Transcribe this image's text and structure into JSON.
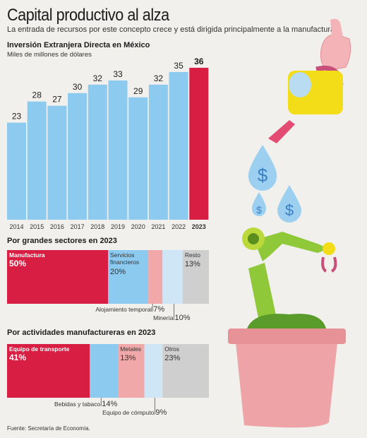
{
  "header": {
    "title": "Capital productivo al alza",
    "subtitle": "La entrada de recursos por este concepto crece y está dirigida principalmente a la manufactura."
  },
  "colors": {
    "red": "#d81f43",
    "blue": "#8ccaf0",
    "pink": "#f0a8a8",
    "lightblue": "#cfe6f6",
    "gray": "#cfcfcf"
  },
  "chart_data": [
    {
      "type": "bar",
      "title": "Inversión Extranjera Directa en México",
      "ylabel": "Miles de millones de dólares",
      "categories": [
        "2014",
        "2015",
        "2016",
        "2017",
        "2018",
        "2019",
        "2020",
        "2021",
        "2022",
        "2023"
      ],
      "values": [
        23,
        28,
        27,
        30,
        32,
        33,
        29,
        32,
        35,
        36
      ],
      "highlight": "2023",
      "ylim": [
        0,
        38
      ]
    },
    {
      "type": "bar",
      "title": "Por grandes sectores en 2023",
      "segments": [
        {
          "name": "Manufactura",
          "value": 50,
          "label": "50%",
          "color": "#d81f43"
        },
        {
          "name": "Servicios financieros",
          "value": 20,
          "label": "20%",
          "color": "#8ccaf0"
        },
        {
          "name": "Alojamiento temporal",
          "value": 7,
          "label": "7%",
          "color": "#f0a8a8"
        },
        {
          "name": "Minería",
          "value": 10,
          "label": "10%",
          "color": "#cfe6f6"
        },
        {
          "name": "Resto",
          "value": 13,
          "label": "13%",
          "color": "#cfcfcf"
        }
      ]
    },
    {
      "type": "bar",
      "title": "Por actividades manufactureras en 2023",
      "segments": [
        {
          "name": "Equipo de transporte",
          "value": 41,
          "label": "41%",
          "color": "#d81f43"
        },
        {
          "name": "Bebidas y tabaco",
          "value": 14,
          "label": "14%",
          "color": "#8ccaf0"
        },
        {
          "name": "Metales",
          "value": 13,
          "label": "13%",
          "color": "#f0a8a8"
        },
        {
          "name": "Equipo de cómputo",
          "value": 9,
          "label": "9%",
          "color": "#cfe6f6"
        },
        {
          "name": "Otros",
          "value": 23,
          "label": "23%",
          "color": "#cfcfcf"
        }
      ]
    }
  ],
  "source": "Fuente: Secretaría de Economía."
}
